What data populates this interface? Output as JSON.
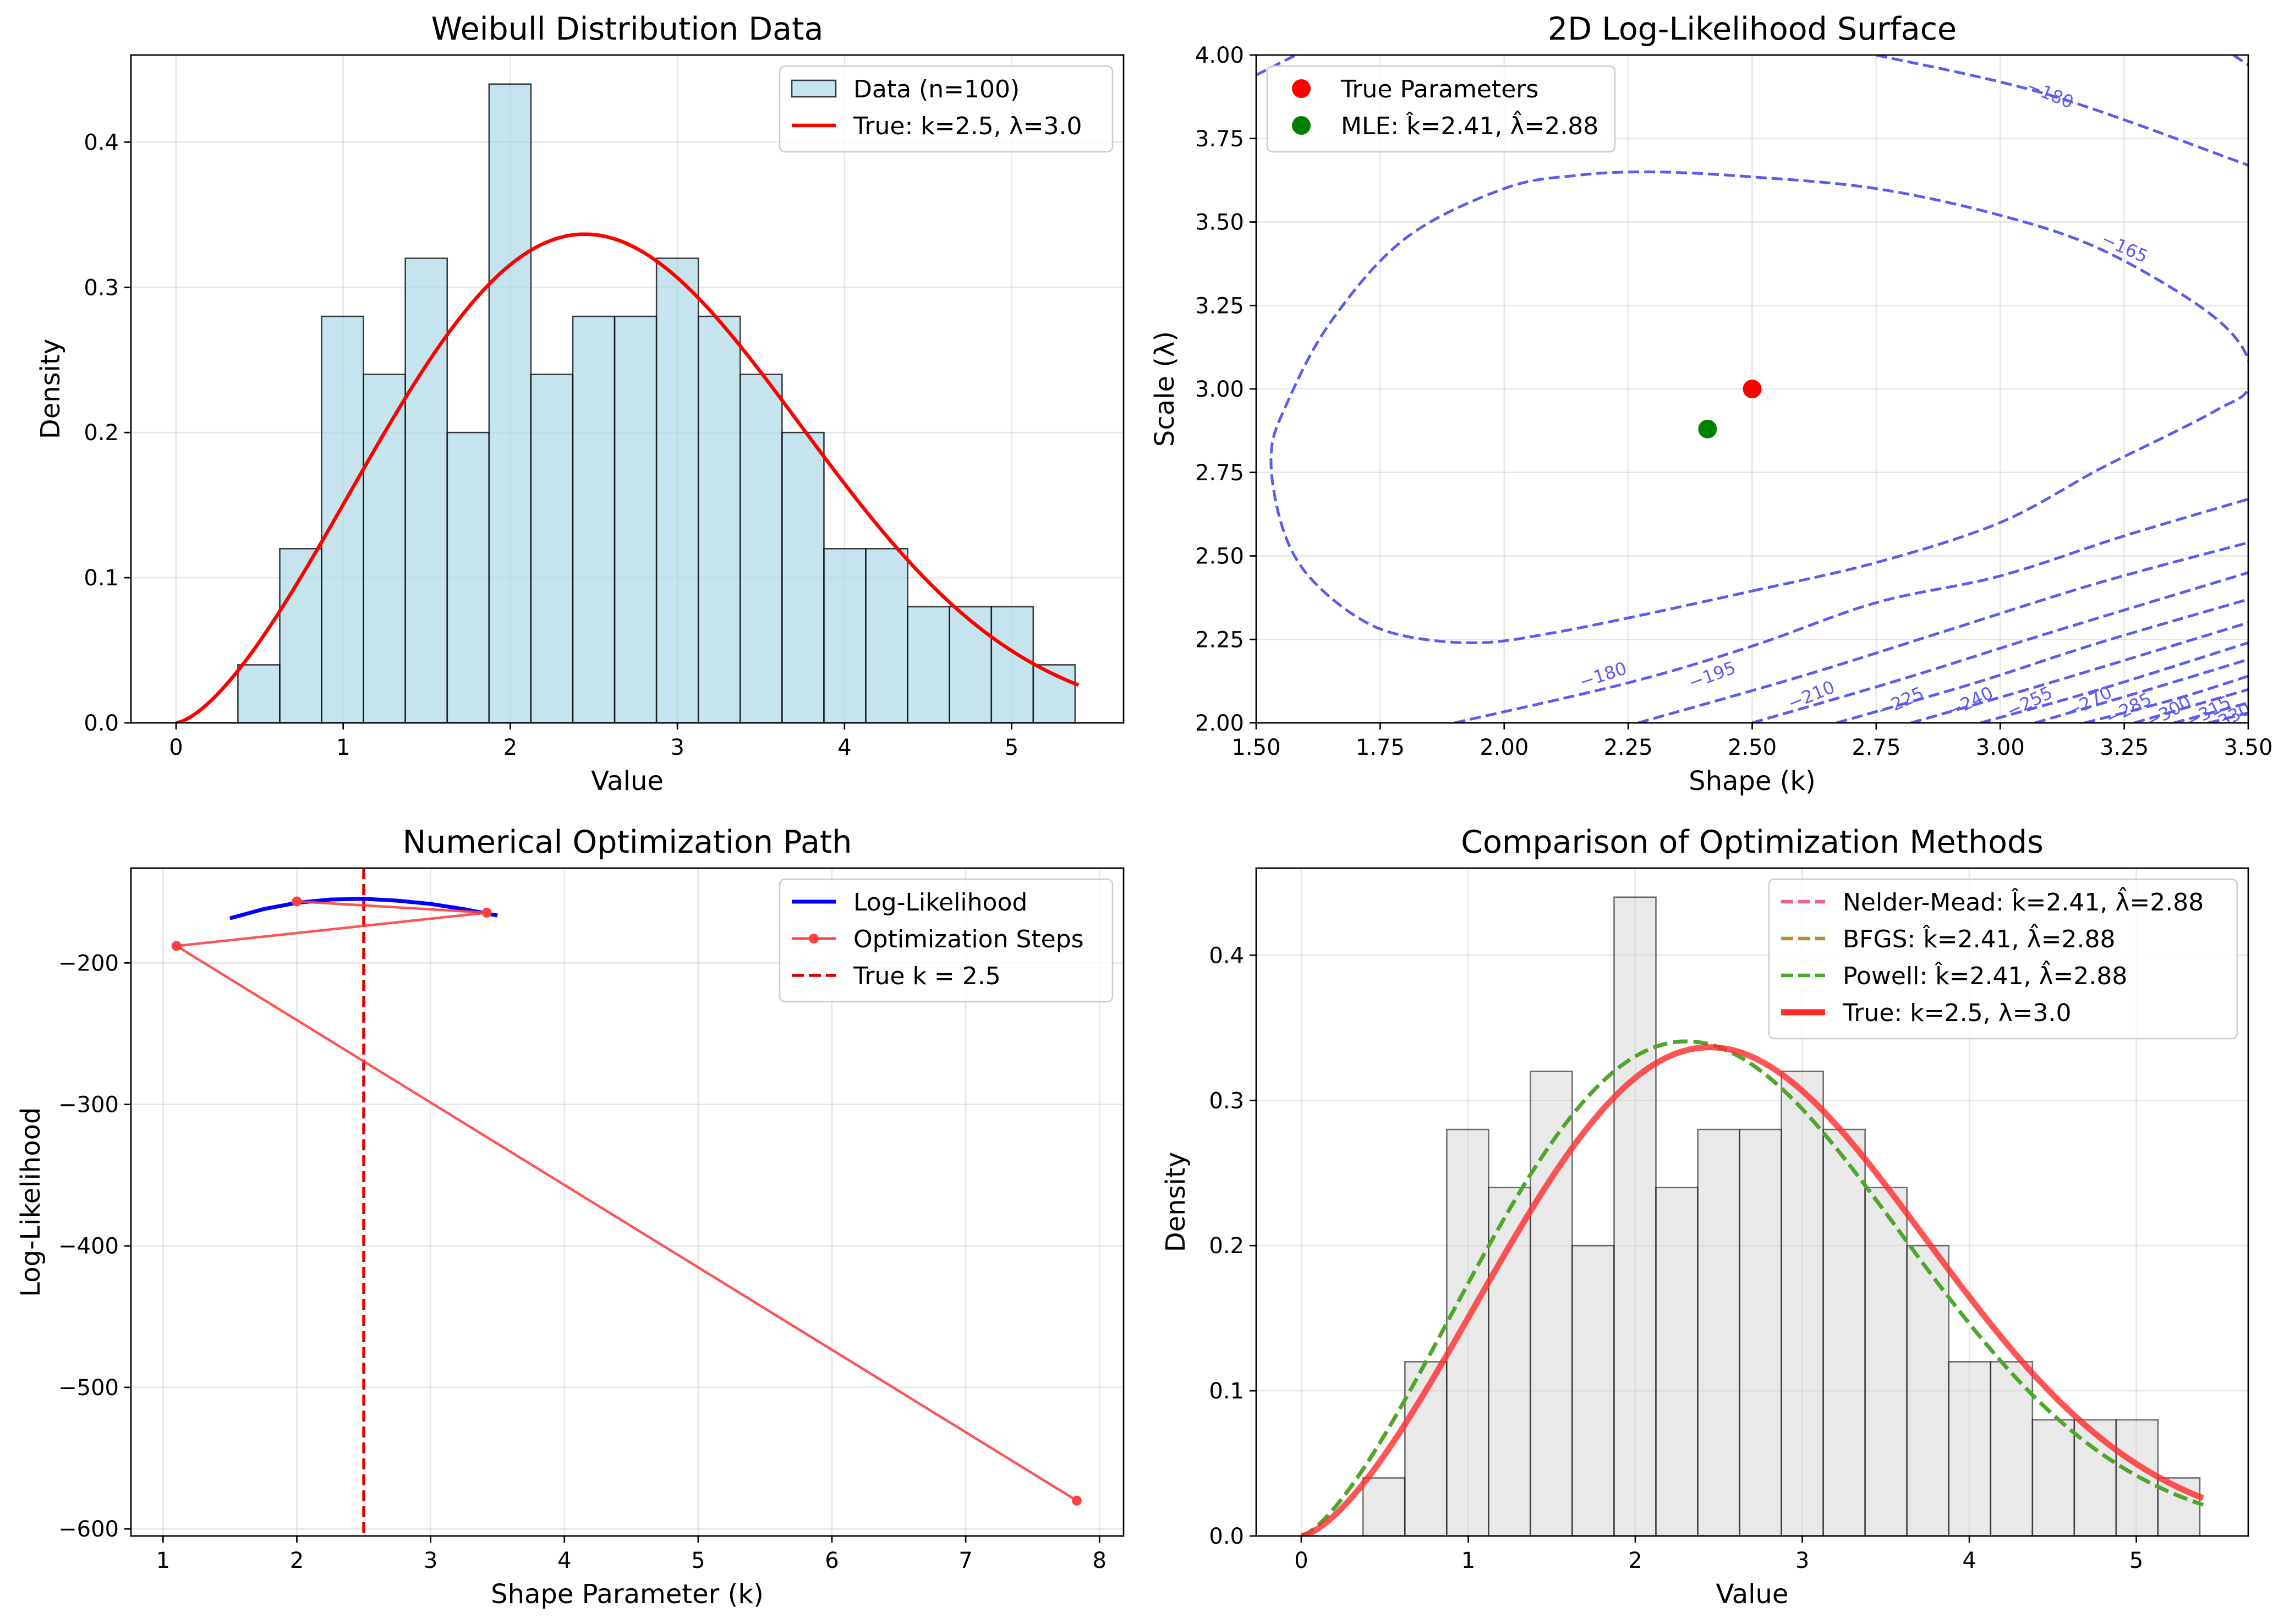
{
  "chart_data": [
    {
      "type": "bar",
      "title": "Weibull Distribution Data",
      "xlabel": "Value",
      "ylabel": "Density",
      "xlim": [
        -0.27,
        5.67
      ],
      "ylim": [
        0,
        0.46
      ],
      "xticks": [
        0,
        1,
        2,
        3,
        4,
        5
      ],
      "yticks": [
        0.0,
        0.1,
        0.2,
        0.3,
        0.4
      ],
      "ytick_labels": [
        "0.0",
        "0.1",
        "0.2",
        "0.3",
        "0.4"
      ],
      "grid": true,
      "legend_position": "top-right",
      "histogram": {
        "name": "Data (n=100)",
        "bin_start": 0.37,
        "bin_width": 0.2505,
        "densities": [
          0.04,
          0.12,
          0.28,
          0.24,
          0.32,
          0.2,
          0.44,
          0.24,
          0.28,
          0.28,
          0.32,
          0.28,
          0.24,
          0.2,
          0.12,
          0.12,
          0.08,
          0.08,
          0.08,
          0.04
        ],
        "color": "#add8e6"
      },
      "curves": [
        {
          "name": "True: k=2.5, λ=3.0",
          "k": 2.5,
          "lambda": 3.0,
          "x_range": [
            0,
            5.4
          ],
          "color": "#ff0000"
        }
      ]
    },
    {
      "type": "contour",
      "title": "2D Log-Likelihood Surface",
      "xlabel": "Shape (k)",
      "ylabel": "Scale (λ)",
      "xlim": [
        1.5,
        3.5
      ],
      "ylim": [
        2.0,
        4.0
      ],
      "xticks": [
        1.5,
        1.75,
        2.0,
        2.25,
        2.5,
        2.75,
        3.0,
        3.25,
        3.5
      ],
      "xtick_labels": [
        "1.50",
        "1.75",
        "2.00",
        "2.25",
        "2.50",
        "2.75",
        "3.00",
        "3.25",
        "3.50"
      ],
      "yticks": [
        2.0,
        2.25,
        2.5,
        2.75,
        3.0,
        3.25,
        3.5,
        3.75,
        4.0
      ],
      "ytick_labels": [
        "2.00",
        "2.25",
        "2.50",
        "2.75",
        "3.00",
        "3.25",
        "3.50",
        "3.75",
        "4.00"
      ],
      "grid": true,
      "legend_position": "top-left",
      "contour_color": "#5b5bf0",
      "contour_levels": [
        {
          "label": "−165",
          "points": [
            [
              2.5,
              2.395
            ],
            [
              2.75,
              2.48
            ],
            [
              3.0,
              2.6
            ],
            [
              3.2,
              2.76
            ],
            [
              3.35,
              2.87
            ],
            [
              3.44,
              2.94
            ],
            [
              3.5,
              3.0
            ],
            [
              3.49,
              3.12
            ],
            [
              3.4,
              3.25
            ],
            [
              3.2,
              3.42
            ],
            [
              3.0,
              3.52
            ],
            [
              2.75,
              3.6
            ],
            [
              2.5,
              3.635
            ],
            [
              2.3,
              3.65
            ],
            [
              2.15,
              3.64
            ],
            [
              2.0,
              3.6
            ],
            [
              1.8,
              3.45
            ],
            [
              1.65,
              3.2
            ],
            [
              1.56,
              2.95
            ],
            [
              1.53,
              2.8
            ],
            [
              1.55,
              2.6
            ],
            [
              1.6,
              2.45
            ],
            [
              1.7,
              2.32
            ],
            [
              1.8,
              2.26
            ],
            [
              1.95,
              2.24
            ],
            [
              2.1,
              2.27
            ],
            [
              2.3,
              2.33
            ],
            [
              2.5,
              2.395
            ]
          ]
        },
        {
          "label": "−180",
          "points": [
            [
              1.5,
              3.94
            ],
            [
              1.58,
              4.0
            ]
          ]
        },
        {
          "label": "−180",
          "points": [
            [
              2.75,
              4.0
            ],
            [
              3.1,
              3.88
            ],
            [
              3.5,
              3.67
            ]
          ]
        },
        {
          "label": "",
          "points": [
            [
              3.47,
              4.0
            ],
            [
              3.5,
              3.97
            ]
          ]
        },
        {
          "label": "−180",
          "points": [
            [
              1.9,
              2.0
            ],
            [
              2.25,
              2.12
            ],
            [
              2.5,
              2.23
            ],
            [
              2.75,
              2.36
            ],
            [
              3.0,
              2.44
            ],
            [
              3.25,
              2.56
            ],
            [
              3.5,
              2.67
            ]
          ]
        },
        {
          "label": "−195",
          "points": [
            [
              2.27,
              2.0
            ],
            [
              2.6,
              2.14
            ],
            [
              2.9,
              2.28
            ],
            [
              3.2,
              2.42
            ],
            [
              3.5,
              2.54
            ]
          ]
        },
        {
          "label": "−210",
          "points": [
            [
              2.5,
              2.0
            ],
            [
              2.8,
              2.13
            ],
            [
              3.1,
              2.27
            ],
            [
              3.5,
              2.45
            ]
          ]
        },
        {
          "label": "−225",
          "points": [
            [
              2.67,
              2.0
            ],
            [
              2.95,
              2.12
            ],
            [
              3.2,
              2.24
            ],
            [
              3.5,
              2.37
            ]
          ]
        },
        {
          "label": "−240",
          "points": [
            [
              2.82,
              2.0
            ],
            [
              3.1,
              2.12
            ],
            [
              3.5,
              2.3
            ]
          ]
        },
        {
          "label": "−255",
          "points": [
            [
              2.96,
              2.0
            ],
            [
              3.2,
              2.1
            ],
            [
              3.5,
              2.24
            ]
          ]
        },
        {
          "label": "−270",
          "points": [
            [
              3.07,
              2.0
            ],
            [
              3.3,
              2.1
            ],
            [
              3.5,
              2.19
            ]
          ]
        },
        {
          "label": "−285",
          "points": [
            [
              3.17,
              2.0
            ],
            [
              3.35,
              2.07
            ],
            [
              3.5,
              2.14
            ]
          ]
        },
        {
          "label": "−300",
          "points": [
            [
              3.27,
              2.0
            ],
            [
              3.5,
              2.1
            ]
          ]
        },
        {
          "label": "−315",
          "points": [
            [
              3.35,
              2.0
            ],
            [
              3.5,
              2.06
            ]
          ]
        },
        {
          "label": "−330",
          "points": [
            [
              3.42,
              2.0
            ],
            [
              3.5,
              2.03
            ]
          ]
        }
      ],
      "points": [
        {
          "name": "True Parameters",
          "x": 2.5,
          "y": 3.0,
          "color": "#ff0000"
        },
        {
          "name": "MLE: k̂=2.41, λ̂=2.88",
          "x": 2.41,
          "y": 2.88,
          "color": "#008000"
        }
      ]
    },
    {
      "type": "line",
      "title": "Numerical Optimization Path",
      "xlabel": "Shape Parameter (k)",
      "ylabel": "Log-Likelihood",
      "xlim": [
        0.76,
        8.18
      ],
      "ylim": [
        -605,
        -133
      ],
      "xticks": [
        1,
        2,
        3,
        4,
        5,
        6,
        7,
        8
      ],
      "yticks": [
        -600,
        -500,
        -400,
        -300,
        -200
      ],
      "ytick_labels": [
        "−600",
        "−500",
        "−400",
        "−300",
        "−200"
      ],
      "grid": true,
      "legend_position": "top-right",
      "series": [
        {
          "name": "Log-Likelihood",
          "color": "#0000ff",
          "x": [
            1.5,
            1.75,
            2.0,
            2.25,
            2.5,
            2.75,
            3.0,
            3.25,
            3.5
          ],
          "y": [
            -168.5,
            -162.0,
            -157.5,
            -155.2,
            -154.7,
            -156.0,
            -158.3,
            -162.0,
            -166.5
          ]
        },
        {
          "name": "Optimization Steps",
          "color": "#ff4040",
          "x": [
            7.83,
            1.1,
            3.42,
            2.0
          ],
          "y": [
            -580,
            -188,
            -164.5,
            -156.5
          ]
        }
      ],
      "reference_lines": [
        {
          "name": "True k = 2.5",
          "x": 2.5,
          "color": "#dd0000"
        }
      ]
    },
    {
      "type": "bar",
      "title": "Comparison of Optimization Methods",
      "xlabel": "Value",
      "ylabel": "Density",
      "xlim": [
        -0.27,
        5.67
      ],
      "ylim": [
        0,
        0.46
      ],
      "xticks": [
        0,
        1,
        2,
        3,
        4,
        5
      ],
      "yticks": [
        0.0,
        0.1,
        0.2,
        0.3,
        0.4
      ],
      "ytick_labels": [
        "0.0",
        "0.1",
        "0.2",
        "0.3",
        "0.4"
      ],
      "grid": true,
      "legend_position": "top-right",
      "histogram": {
        "bin_start": 0.37,
        "bin_width": 0.2505,
        "densities": [
          0.04,
          0.12,
          0.28,
          0.24,
          0.32,
          0.2,
          0.44,
          0.24,
          0.28,
          0.28,
          0.32,
          0.28,
          0.24,
          0.2,
          0.12,
          0.12,
          0.08,
          0.08,
          0.08,
          0.04
        ],
        "color": "#d3d3d3"
      },
      "curves": [
        {
          "name": "Nelder-Mead: k̂=2.41, λ̂=2.88",
          "k": 2.41,
          "lambda": 2.88,
          "x_range": [
            0,
            5.4
          ],
          "color": "#e9658a",
          "dash": true
        },
        {
          "name": "BFGS: k̂=2.41, λ̂=2.88",
          "k": 2.41,
          "lambda": 2.88,
          "x_range": [
            0,
            5.4
          ],
          "color": "#b8902b",
          "dash": true
        },
        {
          "name": "Powell: k̂=2.41, λ̂=2.88",
          "k": 2.41,
          "lambda": 2.88,
          "x_range": [
            0,
            5.4
          ],
          "color": "#4ca82b",
          "dash": true
        },
        {
          "name": "True: k=2.5, λ=3.0",
          "k": 2.5,
          "lambda": 3.0,
          "x_range": [
            0,
            5.4
          ],
          "color": "#ff2a2a",
          "thick": true
        }
      ]
    }
  ]
}
